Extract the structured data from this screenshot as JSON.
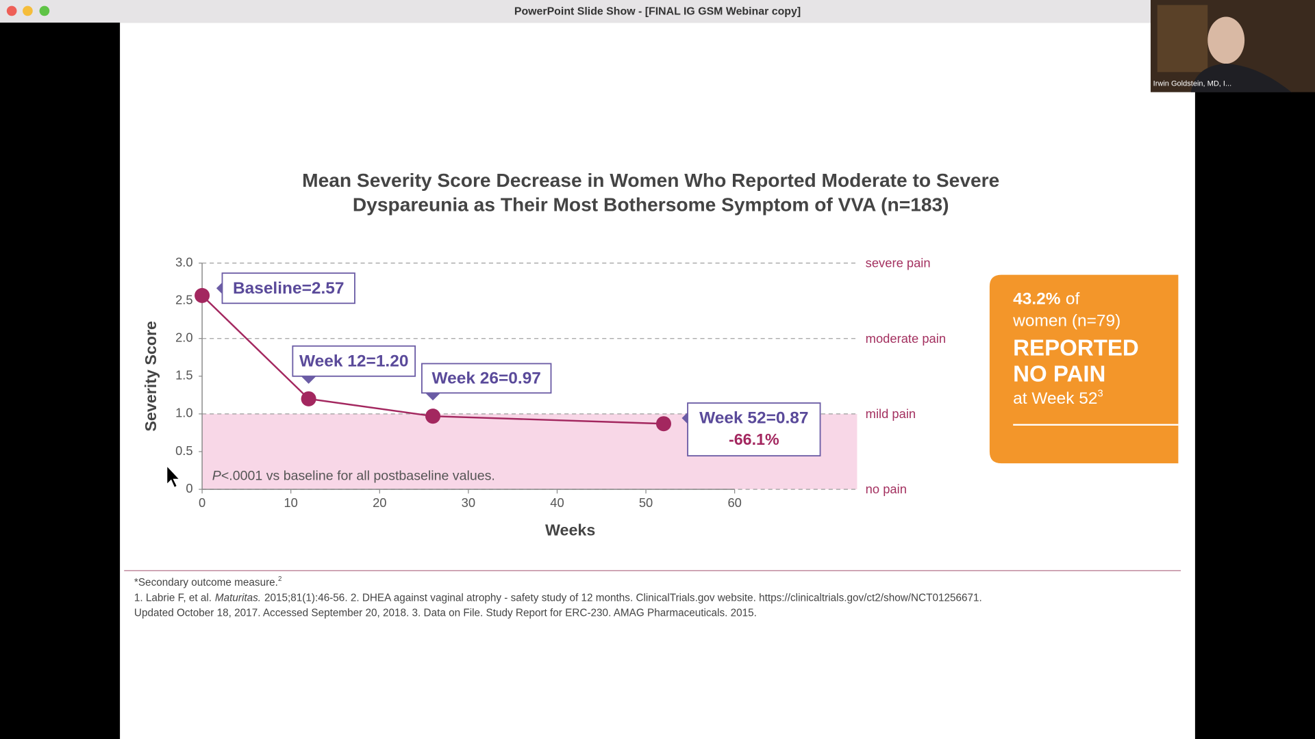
{
  "window": {
    "title": "PowerPoint Slide Show - [FINAL IG GSM Webinar copy]",
    "participant": "Irwin Goldstein, MD, I..."
  },
  "chart_data": {
    "type": "line",
    "title": [
      "Mean Severity Score Decrease in Women Who Reported Moderate to Severe",
      "Dyspareunia as Their Most Bothersome Symptom of VVA (n=183)"
    ],
    "x_label": "Weeks",
    "y_label": "Severity Score",
    "x": [
      0,
      12,
      26,
      52
    ],
    "values": [
      2.57,
      1.2,
      0.97,
      0.87
    ],
    "value_labels": [
      "Baseline=2.57",
      "Week 12=1.20",
      "Week 26=0.97",
      "Week 52=0.87"
    ],
    "change_label": "-66.1%",
    "color": "#a3275f",
    "note": {
      "italic": "P",
      "text": "<.0001 vs baseline for all postbaseline values."
    },
    "reference_lines": [
      {
        "value": 3,
        "label": "severe pain"
      },
      {
        "value": 2,
        "label": "moderate pain"
      },
      {
        "value": 1,
        "label": "mild pain"
      },
      {
        "value": 0,
        "label": "no pain"
      }
    ],
    "xlim": [
      0,
      60
    ],
    "xticks": [
      0,
      10,
      20,
      30,
      40,
      50,
      60
    ],
    "ylim": [
      0,
      3
    ],
    "yticks": [
      0,
      0.5,
      {
        "value": 1,
        "label": "1.0"
      },
      1.5,
      {
        "value": 2,
        "label": "2.0"
      },
      2.5,
      {
        "value": 3,
        "label": "3.0"
      }
    ]
  },
  "callout": {
    "percent": "43.2%",
    "of": "of",
    "line2": "women (n=79)",
    "line3": "REPORTED",
    "line4": "NO PAIN",
    "line5": "at Week 52",
    "sup": "3"
  },
  "footnotes": {
    "line1": {
      "text": "*Secondary outcome measure.",
      "sup": "2"
    },
    "line2": {
      "before": "1. Labrie F, et al.",
      "italic": "Maturitas.",
      "after": "2015;81(1):46-56. 2. DHEA against vaginal atrophy - safety study of 12 months. ClinicalTrials.gov website. https://clinicaltrials.gov/ct2/show/NCT01256671."
    },
    "line3": "Updated October 18, 2017. Accessed September 20, 2018. 3. Data on File. Study Report for ERC-230. AMAG Pharmaceuticals. 2015."
  }
}
